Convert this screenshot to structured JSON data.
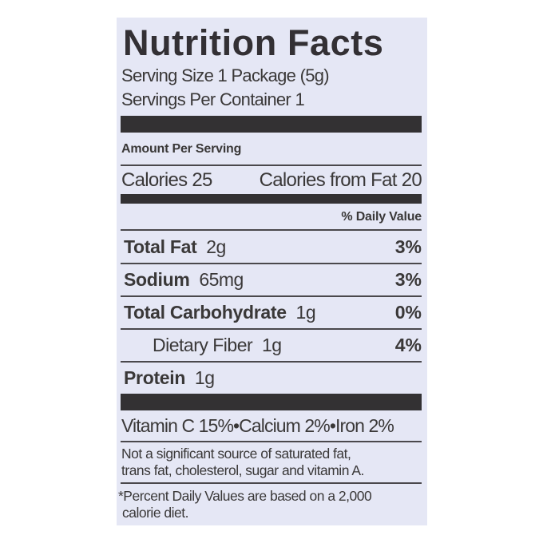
{
  "label": {
    "title": "Nutrition Facts",
    "serving_size": "Serving Size 1 Package (5g)",
    "servings_per_container": "Servings Per Container  1",
    "amount_per_serving": "Amount Per Serving",
    "calories": "Calories 25",
    "calories_from_fat": "Calories from Fat 20",
    "daily_value_header": "% Daily Value",
    "nutrients": [
      {
        "name": "Total Fat",
        "amount": "2g",
        "dv": "3%"
      },
      {
        "name": "Sodium",
        "amount": "65mg",
        "dv": "3%"
      },
      {
        "name": "Total Carbohydrate",
        "amount": "1g",
        "dv": "0%"
      },
      {
        "name": "Dietary Fiber",
        "amount": "1g",
        "dv": "4%"
      },
      {
        "name": "Protein",
        "amount": "1g",
        "dv": ""
      }
    ],
    "vitamins": "Vitamin C 15%•Calcium 2%•Iron 2%",
    "not_significant_line1": "Not a significant source of saturated fat,",
    "not_significant_line2": "trans fat, cholesterol, sugar and vitamin A.",
    "footnote_line1": "*Percent Daily Values are based on a 2,000",
    "footnote_line2": "calorie diet."
  },
  "colors": {
    "background": "#e5e7f5",
    "ink": "#3a3838"
  }
}
